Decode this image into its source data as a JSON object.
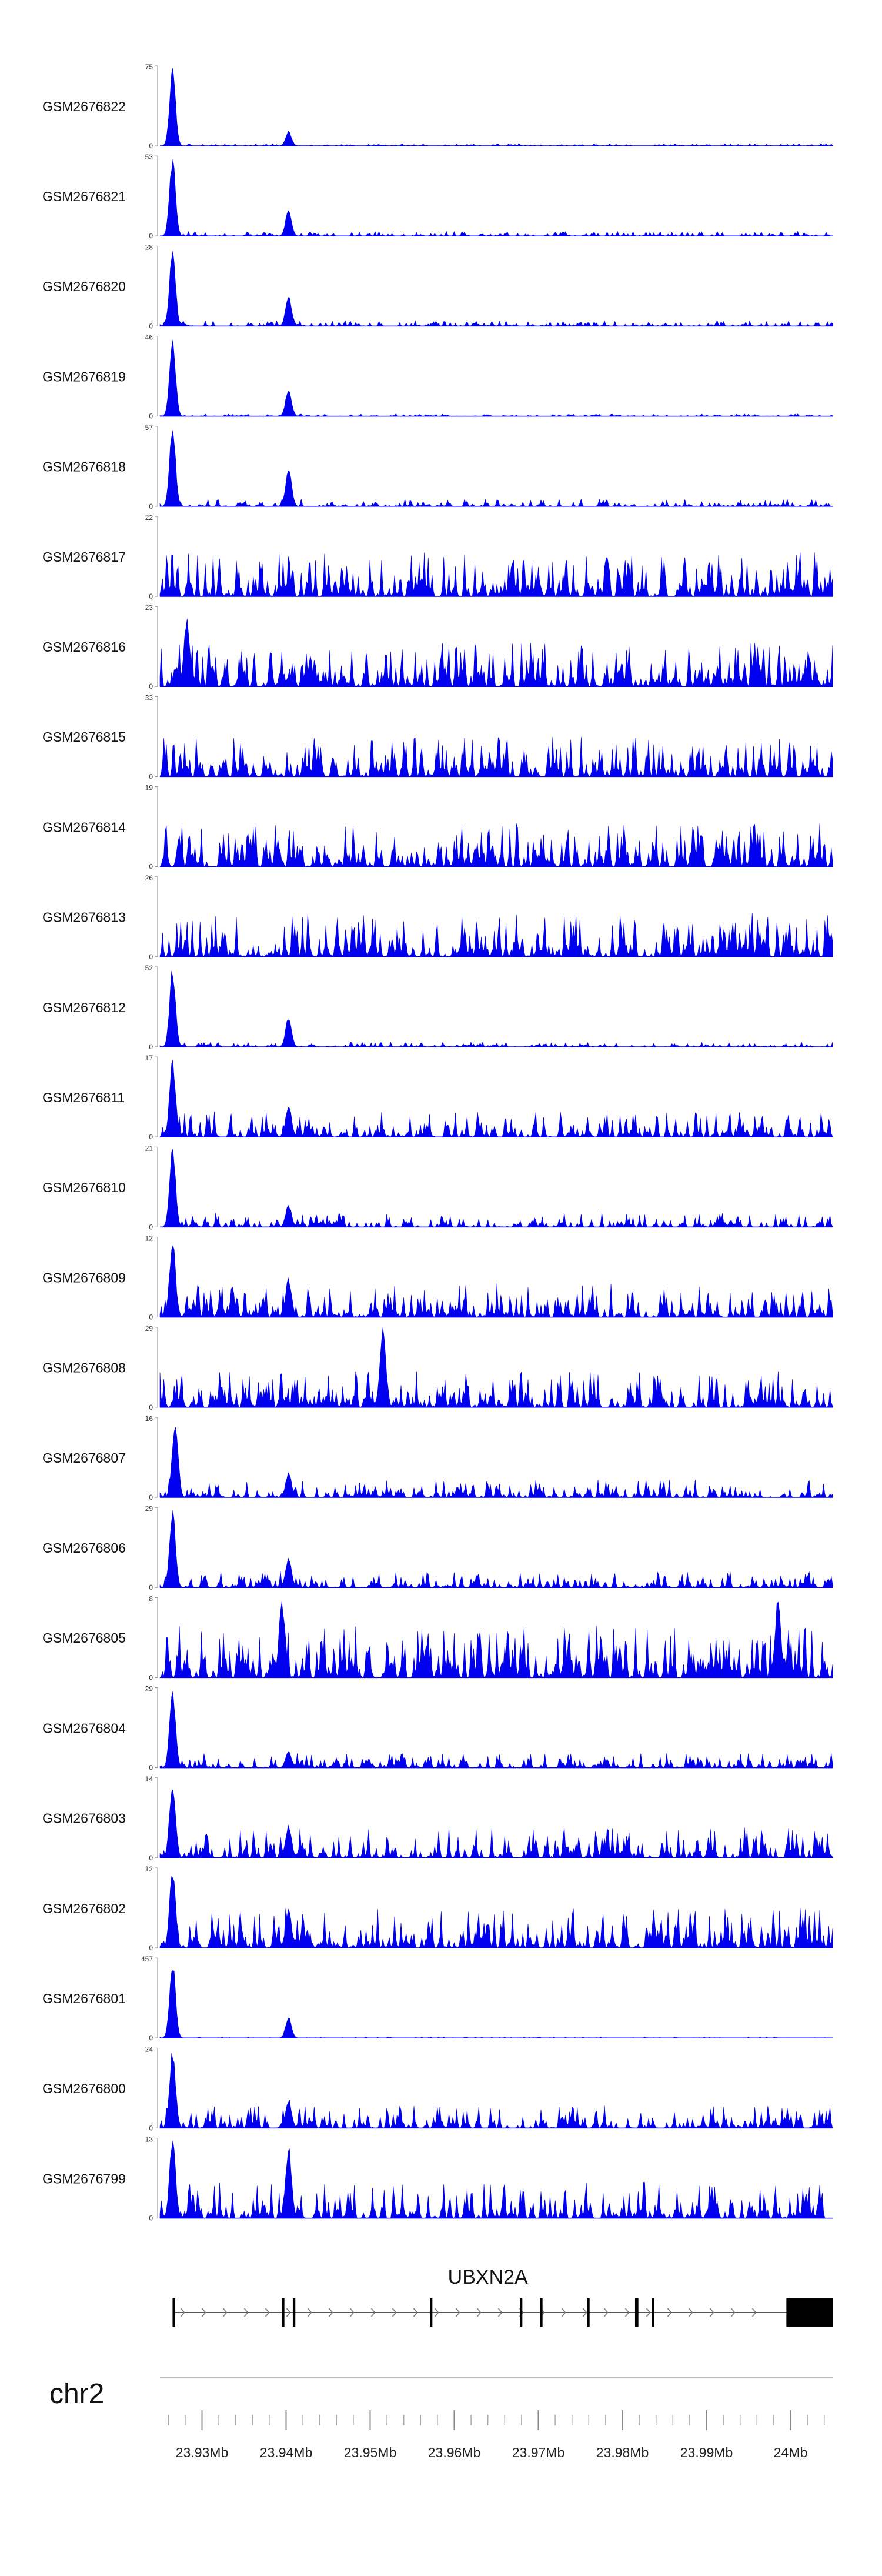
{
  "chart_data": {
    "type": "area",
    "title": "",
    "chromosome": "chr2",
    "xlabel": "",
    "ylabel": "",
    "xlim": [
      23.925,
      24.005
    ],
    "x_unit": "Mb",
    "x_ticks": [
      23.93,
      23.94,
      23.95,
      23.96,
      23.97,
      23.98,
      23.99,
      24.0
    ],
    "x_tick_labels": [
      "23.93Mb",
      "23.94Mb",
      "23.95Mb",
      "23.96Mb",
      "23.97Mb",
      "23.98Mb",
      "23.99Mb",
      "24Mb"
    ],
    "grid": false,
    "legend": "none",
    "fill_color": "#0000ee",
    "tracks": [
      {
        "name": "GSM2676822",
        "ymax": 75,
        "ymax_label": "75",
        "ymin_label": "0",
        "peaks": [
          {
            "x": 23.9265,
            "v": 75
          },
          {
            "x": 23.9403,
            "v": 14
          }
        ],
        "noise": 0.03
      },
      {
        "name": "GSM2676821",
        "ymax": 53,
        "ymax_label": "53",
        "ymin_label": "0",
        "peaks": [
          {
            "x": 23.9265,
            "v": 53
          },
          {
            "x": 23.9403,
            "v": 18
          }
        ],
        "noise": 0.06
      },
      {
        "name": "GSM2676820",
        "ymax": 28,
        "ymax_label": "28",
        "ymin_label": "0",
        "peaks": [
          {
            "x": 23.9265,
            "v": 28
          },
          {
            "x": 23.9403,
            "v": 11
          }
        ],
        "noise": 0.07
      },
      {
        "name": "GSM2676819",
        "ymax": 46,
        "ymax_label": "46",
        "ymin_label": "0",
        "peaks": [
          {
            "x": 23.9265,
            "v": 46
          },
          {
            "x": 23.9403,
            "v": 16
          }
        ],
        "noise": 0.03
      },
      {
        "name": "GSM2676818",
        "ymax": 57,
        "ymax_label": "57",
        "ymin_label": "0",
        "peaks": [
          {
            "x": 23.9265,
            "v": 57
          },
          {
            "x": 23.9403,
            "v": 28
          }
        ],
        "noise": 0.09
      },
      {
        "name": "GSM2676817",
        "ymax": 22,
        "ymax_label": "22",
        "ymin_label": "0",
        "peaks": [],
        "noise": 0.55
      },
      {
        "name": "GSM2676816",
        "ymax": 23,
        "ymax_label": "23",
        "ymin_label": "0",
        "peaks": [
          {
            "x": 23.9282,
            "v": 20
          }
        ],
        "noise": 0.55
      },
      {
        "name": "GSM2676815",
        "ymax": 33,
        "ymax_label": "33",
        "ymin_label": "0",
        "peaks": [],
        "noise": 0.5
      },
      {
        "name": "GSM2676814",
        "ymax": 19,
        "ymax_label": "19",
        "ymin_label": "0",
        "peaks": [],
        "noise": 0.55
      },
      {
        "name": "GSM2676813",
        "ymax": 26,
        "ymax_label": "26",
        "ymin_label": "0",
        "peaks": [],
        "noise": 0.55
      },
      {
        "name": "GSM2676812",
        "ymax": 52,
        "ymax_label": "52",
        "ymin_label": "0",
        "peaks": [
          {
            "x": 23.9265,
            "v": 52
          },
          {
            "x": 23.9403,
            "v": 20
          }
        ],
        "noise": 0.06
      },
      {
        "name": "GSM2676811",
        "ymax": 17,
        "ymax_label": "17",
        "ymin_label": "0",
        "peaks": [
          {
            "x": 23.9265,
            "v": 17
          },
          {
            "x": 23.9403,
            "v": 7
          }
        ],
        "noise": 0.32
      },
      {
        "name": "GSM2676810",
        "ymax": 21,
        "ymax_label": "21",
        "ymin_label": "0",
        "peaks": [
          {
            "x": 23.9265,
            "v": 21
          },
          {
            "x": 23.9403,
            "v": 6
          }
        ],
        "noise": 0.18
      },
      {
        "name": "GSM2676809",
        "ymax": 12,
        "ymax_label": "12",
        "ymin_label": "0",
        "peaks": [
          {
            "x": 23.9265,
            "v": 12
          },
          {
            "x": 23.9403,
            "v": 6
          }
        ],
        "noise": 0.42
      },
      {
        "name": "GSM2676808",
        "ymax": 29,
        "ymax_label": "29",
        "ymin_label": "0",
        "peaks": [
          {
            "x": 23.9515,
            "v": 29
          }
        ],
        "noise": 0.45
      },
      {
        "name": "GSM2676807",
        "ymax": 16,
        "ymax_label": "16",
        "ymin_label": "0",
        "peaks": [
          {
            "x": 23.9268,
            "v": 16
          },
          {
            "x": 23.9403,
            "v": 5
          }
        ],
        "noise": 0.22
      },
      {
        "name": "GSM2676806",
        "ymax": 29,
        "ymax_label": "29",
        "ymin_label": "0",
        "peaks": [
          {
            "x": 23.9265,
            "v": 29
          },
          {
            "x": 23.9403,
            "v": 11
          }
        ],
        "noise": 0.2
      },
      {
        "name": "GSM2676805",
        "ymax": 8,
        "ymax_label": "8",
        "ymin_label": "0",
        "peaks": [
          {
            "x": 23.9395,
            "v": 8
          },
          {
            "x": 23.9985,
            "v": 8
          }
        ],
        "noise": 0.65
      },
      {
        "name": "GSM2676804",
        "ymax": 29,
        "ymax_label": "29",
        "ymin_label": "0",
        "peaks": [
          {
            "x": 23.9265,
            "v": 29
          },
          {
            "x": 23.9403,
            "v": 6
          }
        ],
        "noise": 0.18
      },
      {
        "name": "GSM2676803",
        "ymax": 14,
        "ymax_label": "14",
        "ymin_label": "0",
        "peaks": [
          {
            "x": 23.9265,
            "v": 14
          },
          {
            "x": 23.9403,
            "v": 6
          }
        ],
        "noise": 0.38
      },
      {
        "name": "GSM2676802",
        "ymax": 12,
        "ymax_label": "12",
        "ymin_label": "0",
        "peaks": [
          {
            "x": 23.9265,
            "v": 12
          },
          {
            "x": 23.9403,
            "v": 6
          }
        ],
        "noise": 0.5
      },
      {
        "name": "GSM2676801",
        "ymax": 457,
        "ymax_label": "457",
        "ymin_label": "0",
        "peaks": [
          {
            "x": 23.9265,
            "v": 457
          },
          {
            "x": 23.9403,
            "v": 120
          }
        ],
        "noise": 0.01
      },
      {
        "name": "GSM2676800",
        "ymax": 24,
        "ymax_label": "24",
        "ymin_label": "0",
        "peaks": [
          {
            "x": 23.9265,
            "v": 24
          },
          {
            "x": 23.9403,
            "v": 9
          }
        ],
        "noise": 0.28
      },
      {
        "name": "GSM2676799",
        "ymax": 13,
        "ymax_label": "13",
        "ymin_label": "0",
        "peaks": [
          {
            "x": 23.9265,
            "v": 13
          },
          {
            "x": 23.9403,
            "v": 12
          }
        ],
        "noise": 0.45
      }
    ],
    "gene_annotation": {
      "name": "UBXN2A",
      "strand": "+",
      "start": 23.9265,
      "end": 24.005,
      "exons": [
        {
          "start": 23.9265,
          "end": 23.9268
        },
        {
          "start": 23.9395,
          "end": 23.9398
        },
        {
          "start": 23.9408,
          "end": 23.9411
        },
        {
          "start": 23.9571,
          "end": 23.9574
        },
        {
          "start": 23.9678,
          "end": 23.9681
        },
        {
          "start": 23.9702,
          "end": 23.9705
        },
        {
          "start": 23.9758,
          "end": 23.9761
        },
        {
          "start": 23.9815,
          "end": 23.9819
        },
        {
          "start": 23.9835,
          "end": 23.9838
        },
        {
          "start": 23.9995,
          "end": 24.005
        }
      ]
    }
  }
}
